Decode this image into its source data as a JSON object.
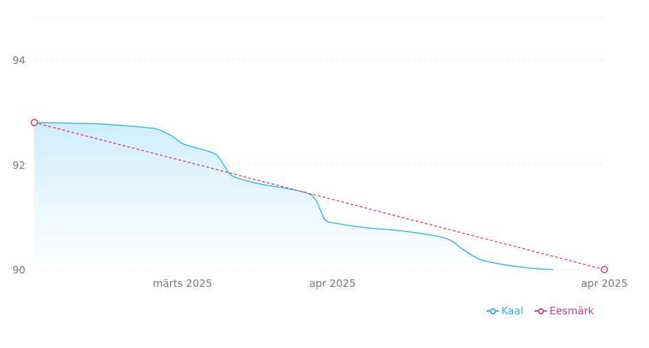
{
  "chart_data": {
    "type": "area",
    "x_ticks": [
      "märts 2025",
      "apr 2025",
      "apr 2025"
    ],
    "y_ticks": [
      90,
      92,
      94
    ],
    "ylim": [
      89.8,
      94.9
    ],
    "grid": true,
    "legend_position": "bottom-right",
    "series": [
      {
        "name": "Kaal",
        "color": "#2bb5dc",
        "fill": "#d6f0fc",
        "points": [
          [
            0.0,
            92.8
          ],
          [
            0.1,
            92.78
          ],
          [
            0.16,
            92.74
          ],
          [
            0.2,
            92.7
          ],
          [
            0.22,
            92.66
          ],
          [
            0.24,
            92.55
          ],
          [
            0.26,
            92.4
          ],
          [
            0.28,
            92.33
          ],
          [
            0.3,
            92.27
          ],
          [
            0.32,
            92.18
          ],
          [
            0.335,
            91.95
          ],
          [
            0.345,
            91.8
          ],
          [
            0.37,
            91.7
          ],
          [
            0.4,
            91.62
          ],
          [
            0.44,
            91.55
          ],
          [
            0.48,
            91.45
          ],
          [
            0.495,
            91.3
          ],
          [
            0.51,
            90.95
          ],
          [
            0.53,
            90.88
          ],
          [
            0.58,
            90.8
          ],
          [
            0.65,
            90.73
          ],
          [
            0.72,
            90.6
          ],
          [
            0.75,
            90.4
          ],
          [
            0.78,
            90.2
          ],
          [
            0.82,
            90.1
          ],
          [
            0.86,
            90.04
          ],
          [
            0.89,
            90.01
          ],
          [
            0.91,
            90.0
          ]
        ]
      },
      {
        "name": "Eesmärk",
        "color": "#d43f7f",
        "points": [
          [
            0.0,
            92.8
          ],
          [
            1.0,
            90.0
          ]
        ]
      }
    ]
  },
  "legend": {
    "items": [
      {
        "label": "Kaal",
        "color": "#2bb5dc"
      },
      {
        "label": "Eesmärk",
        "color": "#d43f7f"
      }
    ]
  }
}
